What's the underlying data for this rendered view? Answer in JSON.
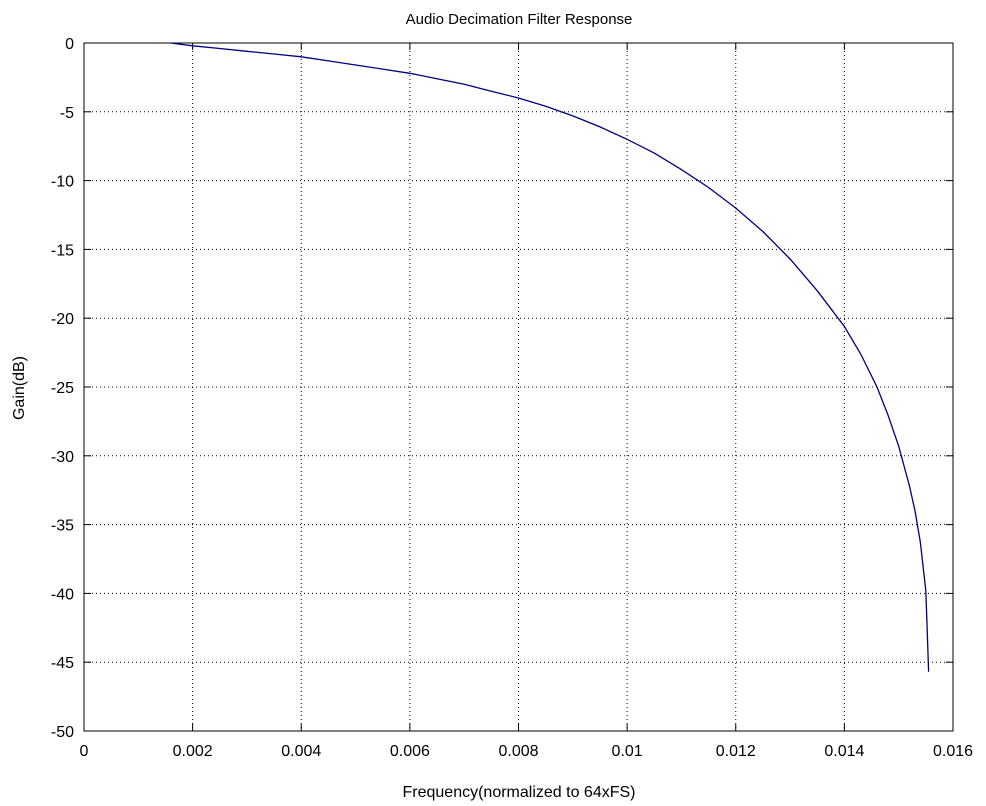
{
  "colors": {
    "series": "#000080",
    "grid": "#000000",
    "axes": "#000000",
    "background": "#ffffff"
  },
  "chart_data": {
    "type": "line",
    "title": "Audio Decimation Filter Response",
    "xlabel": "Frequency(normalized to 64xFS)",
    "ylabel": "Gain(dB)",
    "xlim": [
      0,
      0.016
    ],
    "ylim": [
      -50,
      0
    ],
    "grid": true,
    "xticks": [
      0,
      0.002,
      0.004,
      0.006,
      0.008,
      0.01,
      0.012,
      0.014,
      0.016
    ],
    "xtick_labels": [
      "0",
      "0.002",
      "0.004",
      "0.006",
      "0.008",
      "0.01",
      "0.012",
      "0.014",
      "0.016"
    ],
    "yticks": [
      0,
      -5,
      -10,
      -15,
      -20,
      -25,
      -30,
      -35,
      -40,
      -45,
      -50
    ],
    "ytick_labels": [
      "0",
      "-5",
      "-10",
      "-15",
      "-20",
      "-25",
      "-30",
      "-35",
      "-40",
      "-45",
      "-50"
    ],
    "series": [
      {
        "color": "#000080",
        "x": [
          0.0016,
          0.002,
          0.0025,
          0.003,
          0.0035,
          0.004,
          0.0045,
          0.005,
          0.0055,
          0.006,
          0.0065,
          0.007,
          0.0075,
          0.008,
          0.0085,
          0.009,
          0.0095,
          0.01,
          0.0105,
          0.011,
          0.0115,
          0.012,
          0.0125,
          0.013,
          0.0135,
          0.014,
          0.0143,
          0.0146,
          0.0148,
          0.015,
          0.0152,
          0.0153,
          0.0154,
          0.0155,
          0.01552,
          0.01555
        ],
        "y": [
          0.0,
          -0.2,
          -0.4,
          -0.6,
          -0.8,
          -1.0,
          -1.3,
          -1.6,
          -1.9,
          -2.2,
          -2.6,
          -3.0,
          -3.5,
          -4.0,
          -4.6,
          -5.3,
          -6.1,
          -7.0,
          -8.0,
          -9.2,
          -10.5,
          -12.0,
          -13.7,
          -15.7,
          -18.0,
          -20.6,
          -22.6,
          -25.0,
          -27.0,
          -29.3,
          -32.2,
          -34.0,
          -36.3,
          -39.8,
          -42.0,
          -45.7
        ]
      }
    ]
  }
}
